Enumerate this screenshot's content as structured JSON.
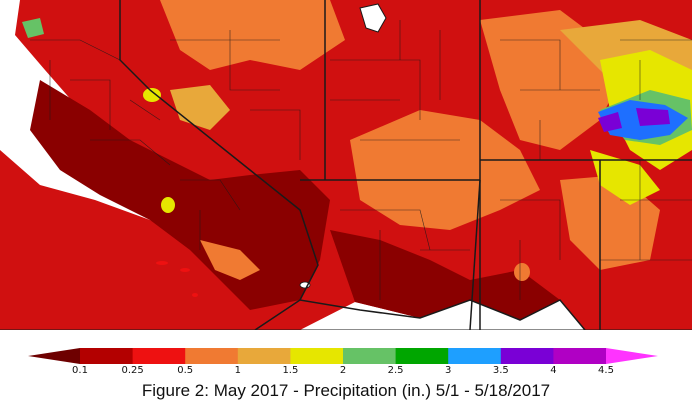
{
  "caption": "Figure 2: May 2017 - Precipitation (in.) 5/1 - 5/18/2017",
  "legend": {
    "tick_labels": [
      "0.1",
      "0.25",
      "0.5",
      "1",
      "1.5",
      "2",
      "2.5",
      "3",
      "3.5",
      "4",
      "4.5"
    ],
    "colors": [
      "#6e0000",
      "#b30000",
      "#ee1111",
      "#f07a32",
      "#e8a83a",
      "#e6e600",
      "#66c266",
      "#00a600",
      "#1e9fff",
      "#7a00d6",
      "#b000c4",
      "#ff33ff"
    ]
  },
  "map": {
    "colors": {
      "ocean": "#ffffff",
      "driest": "#7a0000",
      "dry": "#b80000",
      "low": "#e21a12",
      "mid": "#f07a32",
      "moderate": "#e8a83a",
      "yellow": "#e6e600",
      "light_green": "#66c266",
      "green": "#00a600",
      "blue": "#1e6fff",
      "purple": "#7a00d6",
      "boundary": "#1a1a1a",
      "lake": "#ffffff"
    }
  }
}
